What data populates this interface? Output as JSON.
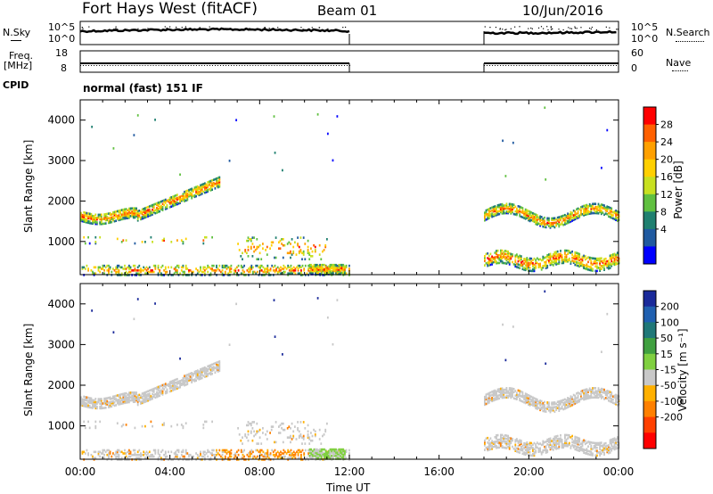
{
  "header": {
    "station": "Fort Hays West (fitACF)",
    "beam": "Beam 01",
    "date": "10/Jun/2016"
  },
  "side_labels": {
    "nsky": "N.Sky",
    "nsearch": "N.Search",
    "freq_line1": "Freq.",
    "freq_line2": "[MHz]",
    "nave": "Nave",
    "cpid": "CPID"
  },
  "strip_ticks": {
    "noise_left": [
      "10^5",
      "10^0"
    ],
    "noise_right": [
      "10^5",
      "10^0"
    ],
    "freq_left": [
      "18",
      "8"
    ],
    "nave_right": [
      "60",
      "0"
    ]
  },
  "cpid_text": "normal (fast) 151 IF",
  "chart_data": [
    {
      "type": "heatmap",
      "name": "power-panel",
      "ylabel": "Slant Range [km]",
      "ylim": [
        180,
        4500
      ],
      "yticks": [
        1000,
        2000,
        3000,
        4000
      ],
      "xlim": [
        0,
        24
      ],
      "colorbar": {
        "label": "Power [dB]",
        "ticks": [
          "28",
          "24",
          "20",
          "16",
          "12",
          "8",
          "4"
        ],
        "colors": [
          "#ff0000",
          "#ff6000",
          "#ffa000",
          "#ffd000",
          "#c8e020",
          "#60c040",
          "#208070",
          "#205aa0",
          "#0000ff"
        ]
      },
      "gap_hours": [
        12,
        18
      ]
    },
    {
      "type": "heatmap",
      "name": "velocity-panel",
      "ylabel": "Slant Range [km]",
      "ylim": [
        180,
        4500
      ],
      "yticks": [
        1000,
        2000,
        3000,
        4000
      ],
      "xlim": [
        0,
        24
      ],
      "xticks": [
        "00:00",
        "04:00",
        "08:00",
        "12:00",
        "16:00",
        "20:00",
        "00:00"
      ],
      "xlabel": "Time UT",
      "colorbar": {
        "label": "Velocity [m s⁻¹]",
        "ticks": [
          "200",
          "100",
          "50",
          "15",
          "-15",
          "-50",
          "-100",
          "-200"
        ],
        "colors": [
          "#1a2a9a",
          "#2060b0",
          "#207878",
          "#40a040",
          "#80d040",
          "#c8c8c8",
          "#ffb000",
          "#ff8000",
          "#ff4000",
          "#ff0000"
        ]
      },
      "gap_hours": [
        12,
        18
      ]
    }
  ]
}
